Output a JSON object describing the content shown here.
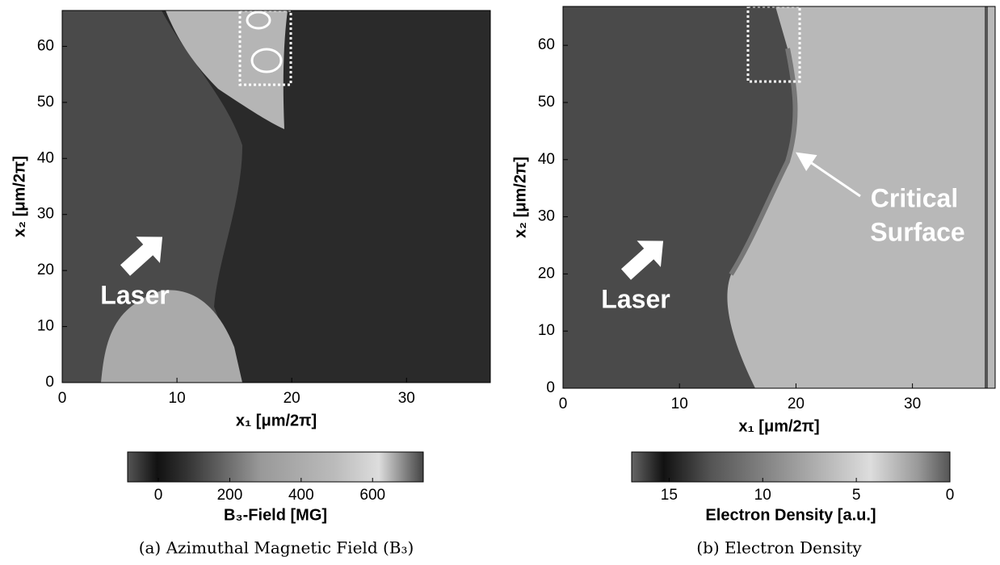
{
  "chart_data": [
    {
      "type": "image",
      "xlabel": "x₁ [μm/2π]",
      "ylabel": "x₂ [μm/2π]",
      "xlim": [
        0,
        37.3
      ],
      "xticks": [
        0,
        10,
        20,
        30
      ],
      "ylim": [
        0,
        66.4
      ],
      "yticks": [
        0,
        10,
        20,
        30,
        40,
        50,
        60
      ],
      "colorbar": {
        "label": "B₃-Field [MG]",
        "lim": [
          -86,
          742
        ],
        "ticks": [
          0,
          200,
          400,
          600
        ]
      },
      "annotations": [
        "Laser"
      ],
      "caption": "(a) Azimuthal Magnetic Field (B₃)"
    },
    {
      "type": "image",
      "xlabel": "x₁ [μm/2π]",
      "ylabel": "x₂ [μm/2π]",
      "xlim": [
        0,
        37.1
      ],
      "xticks": [
        0,
        10,
        20,
        30
      ],
      "ylim": [
        0,
        66.8
      ],
      "yticks": [
        0,
        10,
        20,
        30,
        40,
        50,
        60
      ],
      "colorbar": {
        "label": "Electron Density [a.u.]",
        "lim": [
          17,
          0
        ],
        "ticks": [
          15,
          10,
          5,
          0
        ]
      },
      "annotations": [
        "Laser",
        "Critical",
        "Surface"
      ],
      "caption": "(b) Electron Density"
    }
  ]
}
